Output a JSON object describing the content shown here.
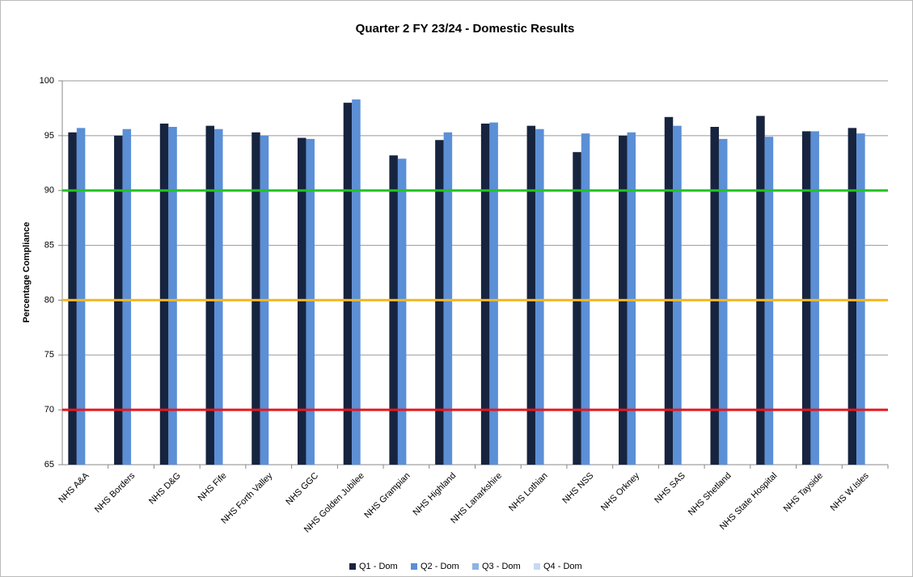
{
  "chart_data": {
    "type": "bar",
    "title": "Quarter 2 FY 23/24 - Domestic Results",
    "y_label": "Percentage Compliance",
    "categories": [
      "NHS A&A",
      "NHS Borders",
      "NHS D&G",
      "NHS Fife",
      "NHS Forth Valley",
      "NHS GGC",
      "NHS Golden Jubilee",
      "NHS Grampian",
      "NHS Highland",
      "NHS Lanarkshire",
      "NHS Lothian",
      "NHS NSS",
      "NHS Orkney",
      "NHS SAS",
      "NHS Shetland",
      "NHS State Hospital",
      "NHS Tayside",
      "NHS W.Isles"
    ],
    "series": [
      {
        "name": "Q1 - Dom",
        "color": "#17243f",
        "values": [
          95.3,
          95.0,
          96.1,
          95.9,
          95.3,
          94.8,
          98.0,
          93.2,
          94.6,
          96.1,
          95.9,
          93.5,
          95.0,
          96.7,
          95.8,
          96.8,
          95.4,
          95.7
        ]
      },
      {
        "name": "Q2 - Dom",
        "color": "#5b8fd6",
        "values": [
          95.7,
          95.6,
          95.8,
          95.6,
          95.0,
          94.7,
          98.3,
          92.9,
          95.3,
          96.2,
          95.6,
          95.2,
          95.3,
          95.9,
          94.7,
          94.9,
          95.4,
          95.2
        ]
      },
      {
        "name": "Q3 - Dom",
        "color": "#8db3e2",
        "values": [
          null,
          null,
          null,
          null,
          null,
          null,
          null,
          null,
          null,
          null,
          null,
          null,
          null,
          null,
          null,
          null,
          null,
          null
        ]
      },
      {
        "name": "Q4 - Dom",
        "color": "#c6d9f1",
        "values": [
          null,
          null,
          null,
          null,
          null,
          null,
          null,
          null,
          null,
          null,
          null,
          null,
          null,
          null,
          null,
          null,
          null,
          null
        ]
      }
    ],
    "reference_lines": [
      {
        "value": 90,
        "color": "#22c322"
      },
      {
        "value": 80,
        "color": "#f5b820"
      },
      {
        "value": 70,
        "color": "#e8161c"
      }
    ],
    "ylim": [
      65,
      100
    ],
    "yticks": [
      65,
      70,
      75,
      80,
      85,
      90,
      95,
      100
    ],
    "grid": true,
    "legend": "bottom"
  }
}
